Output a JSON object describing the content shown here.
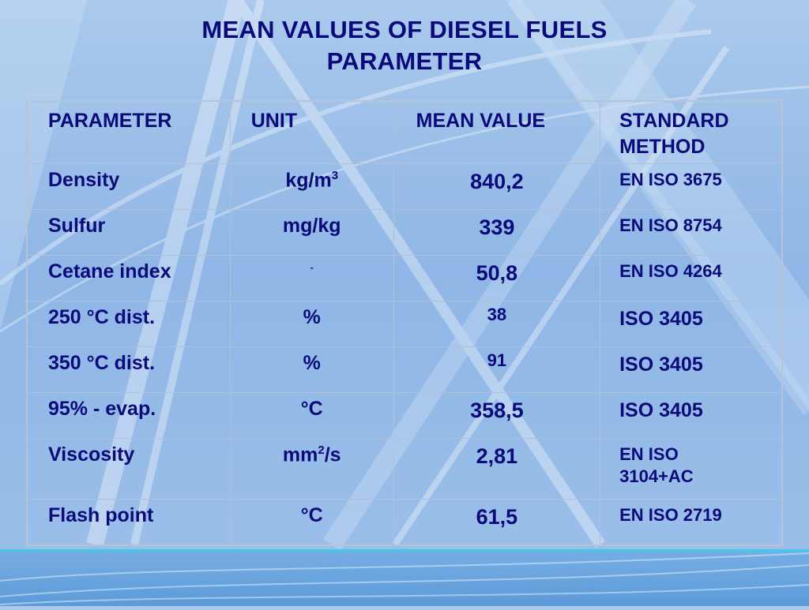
{
  "title_line1": "MEAN VALUES OF DIESEL FUELS",
  "title_line2": "PARAMETER",
  "table": {
    "headers": {
      "parameter": "PARAMETER",
      "unit": "UNIT",
      "mean": "MEAN VALUE",
      "standard": "STANDARD METHOD"
    },
    "rows": [
      {
        "parameter": "Density",
        "unit": "kg/m",
        "unit_sup": "3",
        "mean": "840,2",
        "standard": "EN ISO 3675"
      },
      {
        "parameter": "Sulfur",
        "unit": "mg/kg",
        "mean": "339",
        "standard": "EN ISO 8754"
      },
      {
        "parameter": "Cetane index",
        "unit": "-",
        "mean": "50,8",
        "standard": "EN ISO 4264"
      },
      {
        "parameter": "250 °C dist.",
        "unit": "%",
        "mean": "38",
        "standard": "ISO 3405"
      },
      {
        "parameter": "350 °C dist.",
        "unit": "%",
        "mean": "91",
        "standard": "ISO 3405"
      },
      {
        "parameter": "95% - evap.",
        "unit": "°C",
        "mean": "358,5",
        "standard": "ISO 3405"
      },
      {
        "parameter": "Viscosity",
        "unit": "mm",
        "unit_sup": "2",
        "unit_tail": "/s",
        "mean": "2,81",
        "standard": "EN ISO 3104+AC"
      },
      {
        "parameter": "Flash point",
        "unit": "°C",
        "mean": "61,5",
        "standard": "EN ISO 2719"
      }
    ]
  },
  "colors": {
    "text": "#0a0a7a",
    "background": "#9cc0ea",
    "band": "#5c9ad8",
    "band_line": "#43c8e8"
  }
}
